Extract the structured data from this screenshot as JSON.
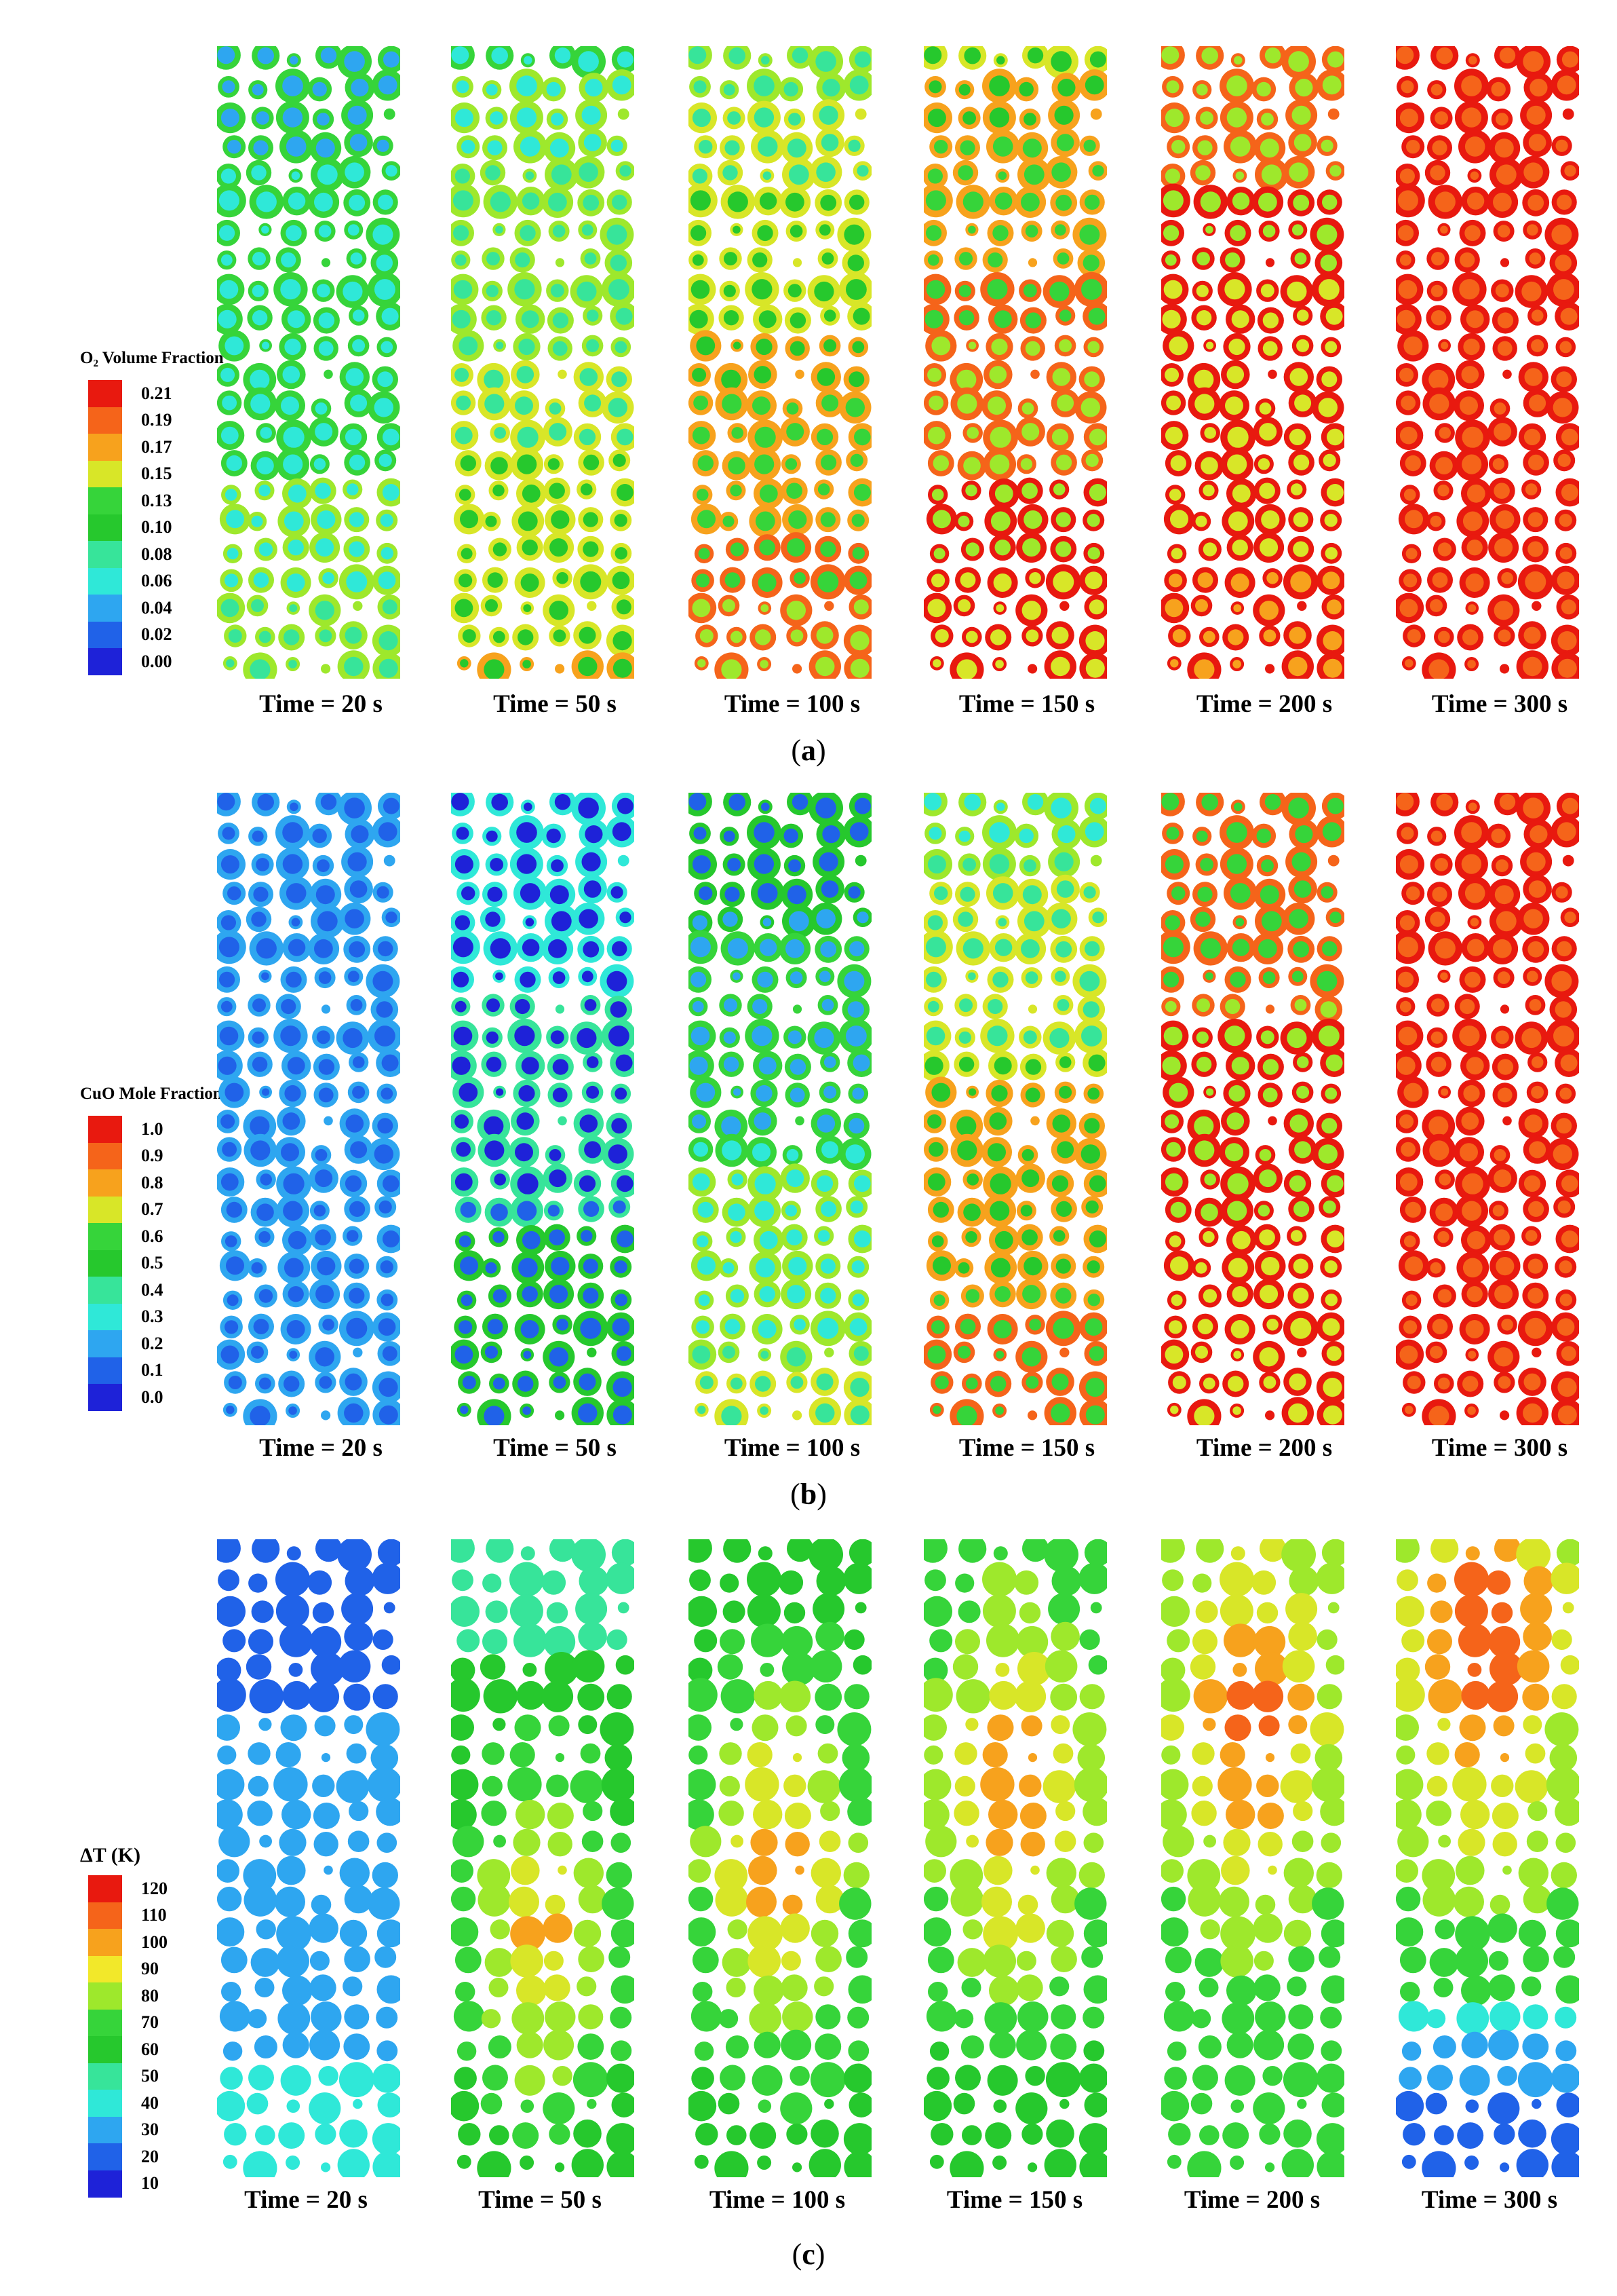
{
  "panels": [
    {
      "id": "a",
      "label_open": "(",
      "label_letter": "a",
      "label_close": ")",
      "legend": {
        "title": "O₂ Volume Fraction",
        "levels": [
          "0.21",
          "0.19",
          "0.17",
          "0.15",
          "0.13",
          "0.10",
          "0.08",
          "0.06",
          "0.04",
          "0.02",
          "0.00"
        ],
        "colors": [
          "#e8190f",
          "#f5641a",
          "#f7a21d",
          "#d8e628",
          "#36d43a",
          "#26c82d",
          "#37e49a",
          "#2fe8d8",
          "#2ea6f0",
          "#2062e8",
          "#1e22d8"
        ]
      },
      "times": [
        "Time = 20 s",
        "Time = 50 s",
        "Time = 100 s",
        "Time = 150 s",
        "Time = 200 s",
        "Time = 300 s"
      ]
    },
    {
      "id": "b",
      "label_open": "(",
      "label_letter": "b",
      "label_close": ")",
      "legend": {
        "title": "CuO Mole Fraction",
        "levels": [
          "1.0",
          "0.9",
          "0.8",
          "0.7",
          "0.6",
          "0.5",
          "0.4",
          "0.3",
          "0.2",
          "0.1",
          "0.0"
        ],
        "colors": [
          "#e8190f",
          "#f5641a",
          "#f7a21d",
          "#d8e628",
          "#36d43a",
          "#26c82d",
          "#37e49a",
          "#2fe8d8",
          "#2ea6f0",
          "#2062e8",
          "#1e22d8"
        ]
      },
      "times": [
        "Time = 20 s",
        "Time = 50 s",
        "Time = 100 s",
        "Time = 150 s",
        "Time = 200 s",
        "Time = 300 s"
      ]
    },
    {
      "id": "c",
      "label_open": "(",
      "label_letter": "c",
      "label_close": ")",
      "legend": {
        "title": "ΔT (K)",
        "levels": [
          "120",
          "110",
          "100",
          "90",
          "80",
          "70",
          "60",
          "50",
          "40",
          "30",
          "20",
          "10"
        ],
        "colors": [
          "#e8190f",
          "#f5641a",
          "#f7a21d",
          "#f2e82a",
          "#9ee82c",
          "#36d43a",
          "#26c82d",
          "#37e49a",
          "#2fe8d8",
          "#2ea6f0",
          "#2062e8",
          "#1e22d8"
        ]
      },
      "times": [
        "Time = 20 s",
        "Time = 50 s",
        "Time = 100 s",
        "Time = 150 s",
        "Time = 200 s",
        "Time = 300 s"
      ]
    }
  ]
}
